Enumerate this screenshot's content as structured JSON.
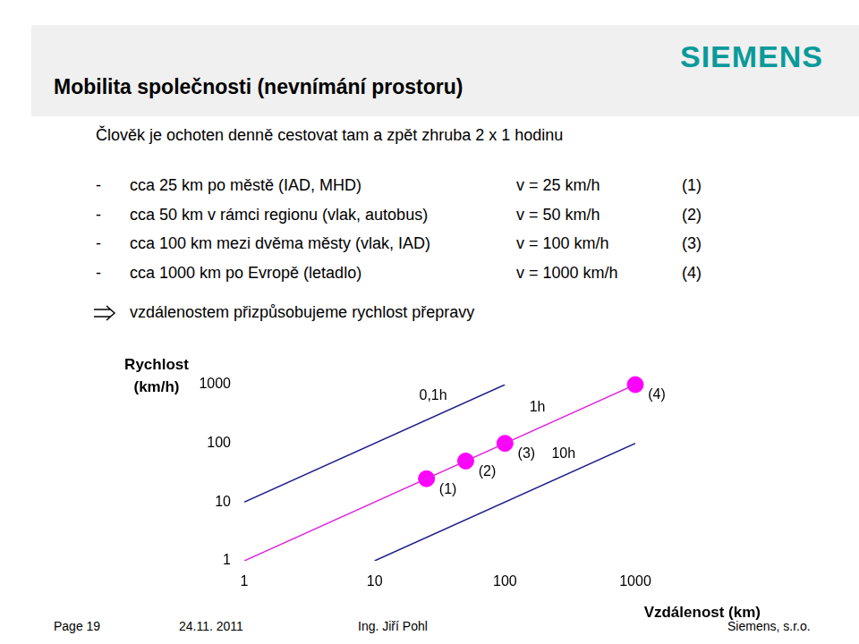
{
  "slide": {
    "title": "Mobilita společnosti (nevnímání prostoru)",
    "logo": "SIEMENS",
    "intro": "Člověk je ochoten denně cestovat tam a zpět zhruba 2 x 1 hodinu",
    "bullet": "-",
    "items": [
      {
        "text": "cca 25 km po městě (IAD, MHD)",
        "speed": "v = 25 km/h",
        "index": "(1)"
      },
      {
        "text": "cca 50 km v rámci regionu (vlak, autobus)",
        "speed": "v = 50 km/h",
        "index": "(2)"
      },
      {
        "text": "cca 100 km mezi dvěma městy (vlak, IAD)",
        "speed": "v = 100 km/h",
        "index": "(3)"
      },
      {
        "text": "cca 1000 km po Evropě (letadlo)",
        "speed": "v = 1000 km/h",
        "index": "(4)"
      }
    ],
    "conclusion": "vzdálenostem přizpůsobujeme rychlost přepravy",
    "footer": [
      "Page 19",
      "24.11. 2011",
      "Ing. Jiří Pohl",
      "Siemens, s.r.o."
    ]
  },
  "chart_data": {
    "type": "scatter",
    "x_label": "Vzdálenost (km)",
    "y_label": [
      "Rychlost",
      "(km/h)"
    ],
    "log": true,
    "grid": false,
    "xlim": [
      1,
      1000
    ],
    "ylim": [
      1,
      1000
    ],
    "xticks": [
      1,
      10,
      100,
      1000
    ],
    "yticks": [
      1,
      10,
      100,
      1000
    ],
    "series": [
      {
        "name": "0,1h",
        "type": "line",
        "color": "#1f1f8c",
        "line_style": "solid",
        "x": [
          1,
          100
        ],
        "values": [
          10,
          1000
        ]
      },
      {
        "name": "1h",
        "type": "line",
        "color": "#e020e0",
        "line_style": "solid",
        "x": [
          1,
          1000
        ],
        "values": [
          1,
          1000
        ]
      },
      {
        "name": "10h",
        "type": "line",
        "color": "#1f1f8c",
        "line_style": "solid",
        "x": [
          10,
          1000
        ],
        "values": [
          1,
          100
        ]
      },
      {
        "type": "scatter",
        "color": "#ff00ff",
        "marker": "circle",
        "x": [
          25,
          50,
          100,
          1000
        ],
        "values": [
          25,
          50,
          100,
          1000
        ],
        "labels": [
          "(1)",
          "(2)",
          "(3)",
          "(4)"
        ]
      }
    ]
  }
}
